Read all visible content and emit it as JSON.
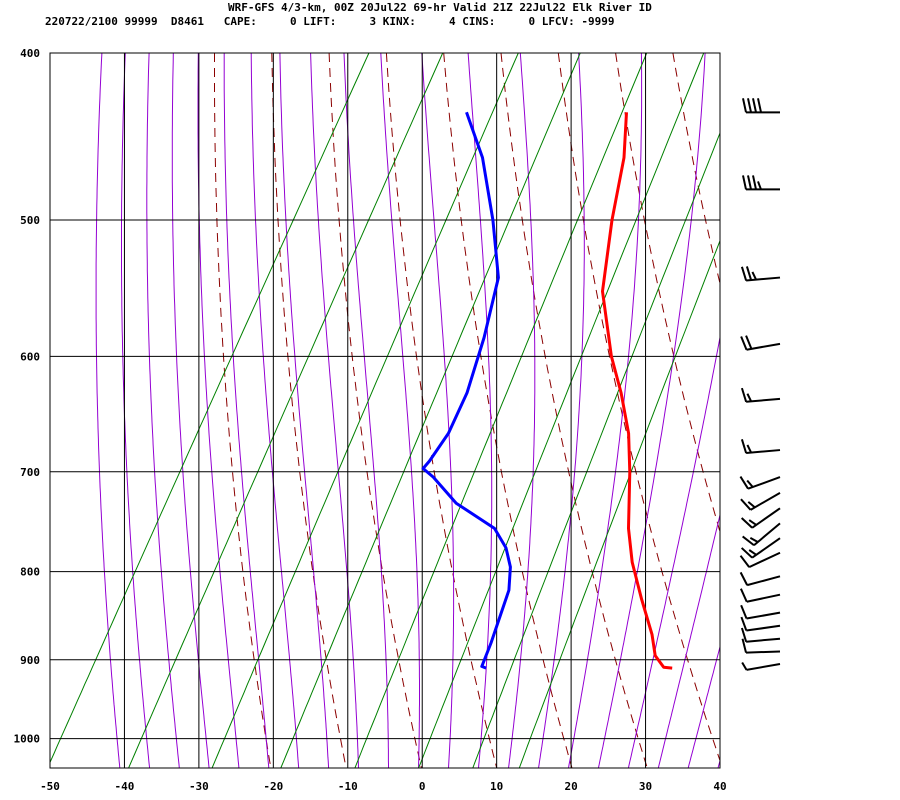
{
  "header": {
    "title": "WRF-GFS 4/3-km, 00Z 20Jul22 69-hr Valid 21Z 22Jul22 Elk River ID",
    "subtitle": "220722/2100 99999  D8461   CAPE:     0 LIFT:     3 KINX:     4 CINS:     0 LFCV: -9999"
  },
  "colors": {
    "temperature": "#ff0000",
    "dewpoint": "#0000ff",
    "dry_adiabat": "#8b0000",
    "mixing_ratio": "#008000",
    "moist_adiabat": "#9400d3",
    "grid": "#000000",
    "wind_barb": "#000000"
  },
  "chart_data": {
    "type": "line",
    "skew_t_log_p": true,
    "xlim": [
      -50,
      40
    ],
    "ylim_pressure": [
      1040,
      400
    ],
    "x_ticks": [
      "-50",
      "-40",
      "-30",
      "-20",
      "-10",
      "0",
      "10",
      "20",
      "30",
      "40"
    ],
    "y_ticks": [
      "400",
      "500",
      "600",
      "700",
      "800",
      "900",
      "1000"
    ],
    "grid": true,
    "series": [
      {
        "role": "temperature",
        "points": [
          {
            "p": 910,
            "t": 26.2
          },
          {
            "p": 909,
            "t": 25.0
          },
          {
            "p": 895,
            "t": 23.0
          },
          {
            "p": 870,
            "t": 21.0
          },
          {
            "p": 830,
            "t": 17.0
          },
          {
            "p": 790,
            "t": 13.0
          },
          {
            "p": 755,
            "t": 10.0
          },
          {
            "p": 700,
            "t": 6.0
          },
          {
            "p": 665,
            "t": 3.0
          },
          {
            "p": 630,
            "t": -1.0
          },
          {
            "p": 600,
            "t": -5.0
          },
          {
            "p": 550,
            "t": -11.0
          },
          {
            "p": 500,
            "t": -15.0
          },
          {
            "p": 460,
            "t": -18.0
          },
          {
            "p": 433,
            "t": -21.0
          }
        ]
      },
      {
        "role": "dewpoint",
        "points": [
          {
            "p": 910,
            "t": 1.2
          },
          {
            "p": 908,
            "t": 0.5
          },
          {
            "p": 880,
            "t": 0.0
          },
          {
            "p": 820,
            "t": -1.5
          },
          {
            "p": 795,
            "t": -3.0
          },
          {
            "p": 775,
            "t": -5.0
          },
          {
            "p": 755,
            "t": -8.0
          },
          {
            "p": 730,
            "t": -15.0
          },
          {
            "p": 705,
            "t": -20.0
          },
          {
            "p": 697,
            "t": -22.0
          },
          {
            "p": 690,
            "t": -21.7
          },
          {
            "p": 665,
            "t": -21.2
          },
          {
            "p": 630,
            "t": -21.7
          },
          {
            "p": 585,
            "t": -23.5
          },
          {
            "p": 540,
            "t": -26.0
          },
          {
            "p": 500,
            "t": -31.0
          },
          {
            "p": 460,
            "t": -37.0
          },
          {
            "p": 433,
            "t": -42.5
          }
        ]
      }
    ],
    "wind_barbs": [
      {
        "p": 433,
        "dir": 270,
        "spd": 40
      },
      {
        "p": 480,
        "dir": 270,
        "spd": 35
      },
      {
        "p": 540,
        "dir": 265,
        "spd": 25
      },
      {
        "p": 590,
        "dir": 260,
        "spd": 20
      },
      {
        "p": 635,
        "dir": 265,
        "spd": 15
      },
      {
        "p": 680,
        "dir": 265,
        "spd": 15
      },
      {
        "p": 705,
        "dir": 250,
        "spd": 15
      },
      {
        "p": 720,
        "dir": 240,
        "spd": 15
      },
      {
        "p": 735,
        "dir": 235,
        "spd": 15
      },
      {
        "p": 750,
        "dir": 230,
        "spd": 15
      },
      {
        "p": 765,
        "dir": 235,
        "spd": 15
      },
      {
        "p": 780,
        "dir": 245,
        "spd": 10
      },
      {
        "p": 805,
        "dir": 255,
        "spd": 10
      },
      {
        "p": 825,
        "dir": 258,
        "spd": 10
      },
      {
        "p": 845,
        "dir": 260,
        "spd": 10
      },
      {
        "p": 860,
        "dir": 262,
        "spd": 10
      },
      {
        "p": 875,
        "dir": 265,
        "spd": 10
      },
      {
        "p": 890,
        "dir": 268,
        "spd": 10
      },
      {
        "p": 905,
        "dir": 260,
        "spd": 5
      }
    ]
  }
}
